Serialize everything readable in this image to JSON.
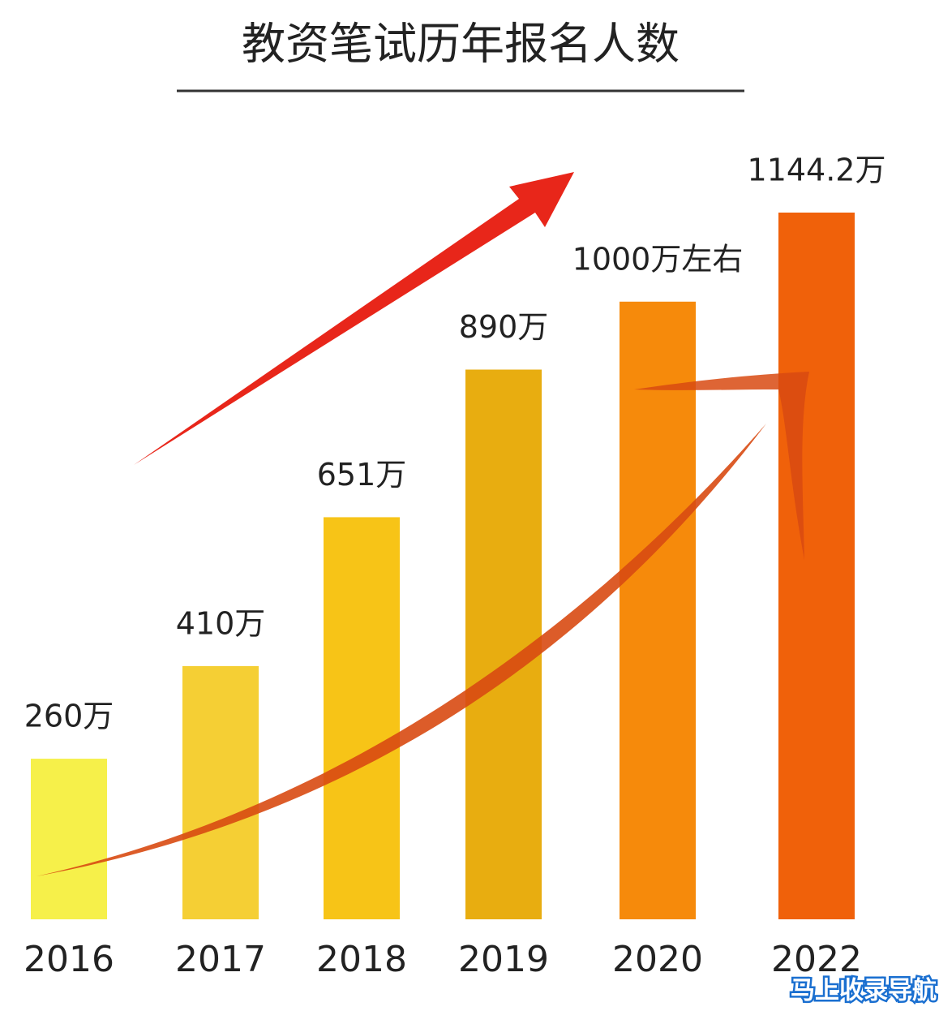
{
  "chart_data": {
    "type": "bar",
    "title": "教资笔试历年报名人数",
    "categories": [
      "2016",
      "2017",
      "2018",
      "2019",
      "2020",
      "2022"
    ],
    "values": [
      260,
      410,
      651,
      890,
      1000,
      1144.2
    ],
    "value_labels": [
      "260万",
      "410万",
      "651万",
      "890万",
      "1000万左右",
      "1144.2万"
    ],
    "colors": [
      "#f6f04a",
      "#f5cf34",
      "#f7c417",
      "#e8ad10",
      "#f68a0b",
      "#f0610a"
    ]
  },
  "watermark": "马上收录导航"
}
